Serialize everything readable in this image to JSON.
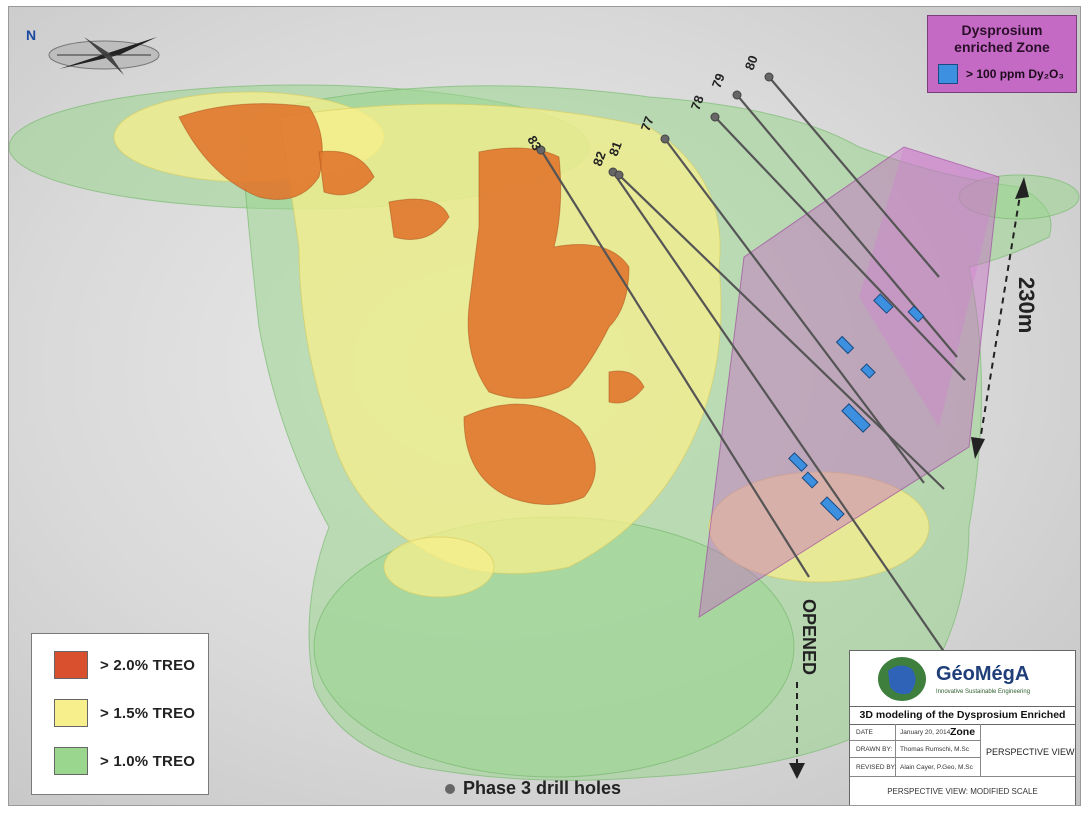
{
  "compass": {
    "north_label": "N"
  },
  "legend": {
    "items": [
      {
        "label": "> 2.0% TREO",
        "color": "#d9502e"
      },
      {
        "label": "> 1.5% TREO",
        "color": "#f7ef8c"
      },
      {
        "label": "> 1.0% TREO",
        "color": "#9bd68f"
      }
    ]
  },
  "dysprosium": {
    "title_line1": "Dysprosium",
    "title_line2": "enriched Zone",
    "item_label": "> 100 ppm Dy₂O₃",
    "zone_color": "#c56ac4",
    "marker_color": "#3d8fe0"
  },
  "drill_holes": {
    "labels": [
      "83",
      "82",
      "81",
      "77",
      "78",
      "79",
      "80"
    ],
    "legend_label": "Phase 3 drill holes"
  },
  "annotations": {
    "distance": "230m",
    "opened": "OPENED"
  },
  "title_block": {
    "company": "GéoMégA",
    "tagline": "Innovative Sustainable Engineering",
    "title": "3D modeling of the Dysprosium Enriched Zone",
    "date_label": "DATE",
    "date_value": "January 20, 2014",
    "drawn_label": "DRAWN BY:",
    "drawn_value": "Thomas Rumschi, M.Sc",
    "revised_label": "REVISED BY:",
    "revised_value": "Alain Cayer, P.Geo, M.Sc",
    "view": "PERSPECTIVE VIEW",
    "footer": "PERSPECTIVE VIEW: MODIFIED SCALE"
  },
  "colors": {
    "background": "#d9d9d9",
    "green": "#9bd68f",
    "yellow": "#f7ef8c",
    "orange": "#e0772e",
    "magenta": "#c56ac4",
    "blue": "#3d8fe0"
  }
}
